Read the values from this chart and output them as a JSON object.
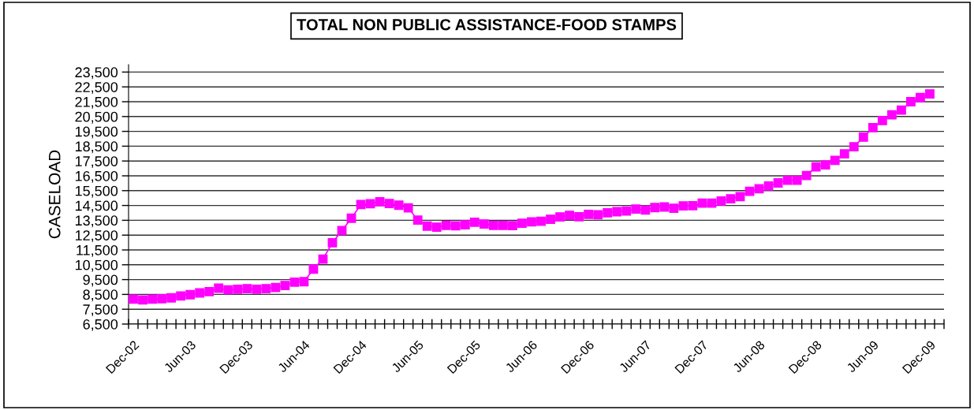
{
  "chart_data": {
    "type": "line",
    "title": "TOTAL NON PUBLIC ASSISTANCE-FOOD STAMPS",
    "ylabel": "CASELOAD",
    "categories": [
      "Dec-02",
      null,
      null,
      null,
      null,
      null,
      "Jun-03",
      null,
      null,
      null,
      null,
      null,
      "Dec-03",
      null,
      null,
      null,
      null,
      null,
      "Jun-04",
      null,
      null,
      null,
      null,
      null,
      "Dec-04",
      null,
      null,
      null,
      null,
      null,
      "Jun-05",
      null,
      null,
      null,
      null,
      null,
      "Dec-05",
      null,
      null,
      null,
      null,
      null,
      "Jun-06",
      null,
      null,
      null,
      null,
      null,
      "Dec-06",
      null,
      null,
      null,
      null,
      null,
      "Jun-07",
      null,
      null,
      null,
      null,
      null,
      "Dec-07",
      null,
      null,
      null,
      null,
      null,
      "Jun-08",
      null,
      null,
      null,
      null,
      null,
      "Dec-08",
      null,
      null,
      null,
      null,
      null,
      "Jun-09",
      null,
      null,
      null,
      null,
      null,
      "Dec-09",
      null
    ],
    "series": [
      {
        "color": "#ff00ff",
        "values": [
          8180,
          8130,
          8180,
          8210,
          8270,
          8390,
          8480,
          8600,
          8690,
          8920,
          8810,
          8850,
          8890,
          8850,
          8890,
          8970,
          9100,
          9330,
          9360,
          10210,
          10880,
          11990,
          12810,
          13640,
          14560,
          14620,
          14750,
          14630,
          14520,
          14340,
          13510,
          13110,
          13040,
          13160,
          13130,
          13200,
          13370,
          13250,
          13160,
          13160,
          13140,
          13300,
          13390,
          13430,
          13570,
          13730,
          13830,
          13740,
          13900,
          13870,
          14010,
          14080,
          14130,
          14260,
          14190,
          14360,
          14400,
          14310,
          14470,
          14490,
          14660,
          14660,
          14800,
          14950,
          15100,
          15460,
          15630,
          15810,
          16020,
          16200,
          16200,
          16520,
          17100,
          17240,
          17540,
          17980,
          18460,
          19110,
          19750,
          20230,
          20620,
          20930,
          21500,
          21780,
          22030,
          null
        ]
      }
    ],
    "ylim": [
      6500,
      24000
    ],
    "yticks": [
      {
        "value": 6500,
        "label": "6,500"
      },
      {
        "value": 7500,
        "label": "7,500"
      },
      {
        "value": 8500,
        "label": "8,500"
      },
      {
        "value": 9500,
        "label": "9,500"
      },
      {
        "value": 10500,
        "label": "10,500"
      },
      {
        "value": 11500,
        "label": "11,500"
      },
      {
        "value": 12500,
        "label": "12,500"
      },
      {
        "value": 13500,
        "label": "13,500"
      },
      {
        "value": 14500,
        "label": "14,500"
      },
      {
        "value": 15500,
        "label": "15,500"
      },
      {
        "value": 16500,
        "label": "16,500"
      },
      {
        "value": 17500,
        "label": "17,500"
      },
      {
        "value": 18500,
        "label": "18,500"
      },
      {
        "value": 19500,
        "label": "19,500"
      },
      {
        "value": 20500,
        "label": "20,500"
      },
      {
        "value": 21500,
        "label": "21,500"
      },
      {
        "value": 22500,
        "label": "22,500"
      },
      {
        "value": 23500,
        "label": "23,500"
      }
    ],
    "grid": "y",
    "marker": "square",
    "line_style": "solid",
    "legend": false
  }
}
